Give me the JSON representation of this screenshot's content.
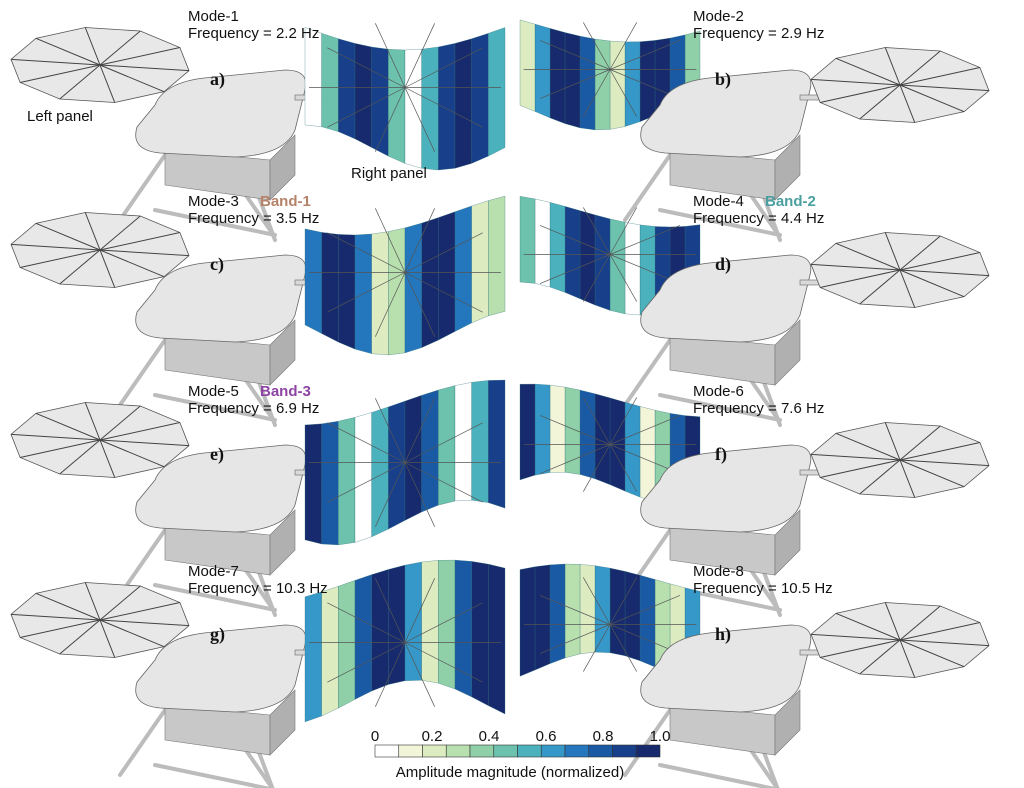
{
  "modes": [
    {
      "panel": "a)",
      "mode": "Mode-1",
      "frequency": "Frequency = 2.2 Hz",
      "band": "",
      "band_color": "",
      "deformed_side": "right"
    },
    {
      "panel": "b)",
      "mode": "Mode-2",
      "frequency": "Frequency = 2.9 Hz",
      "band": "",
      "band_color": "",
      "deformed_side": "left"
    },
    {
      "panel": "c)",
      "mode": "Mode-3",
      "frequency": "Frequency = 3.5 Hz",
      "band": "Band-1",
      "band_color": "#b5826a",
      "deformed_side": "right"
    },
    {
      "panel": "d)",
      "mode": "Mode-4",
      "frequency": "Frequency = 4.4 Hz",
      "band": "Band-2",
      "band_color": "#4a9fa0",
      "deformed_side": "left"
    },
    {
      "panel": "e)",
      "mode": "Mode-5",
      "frequency": "Frequency = 6.9 Hz",
      "band": "Band-3",
      "band_color": "#8e44a3",
      "deformed_side": "right"
    },
    {
      "panel": "f)",
      "mode": "Mode-6",
      "frequency": "Frequency = 7.6 Hz",
      "band": "",
      "band_color": "",
      "deformed_side": "left"
    },
    {
      "panel": "g)",
      "mode": "Mode-7",
      "frequency": "Frequency = 10.3 Hz",
      "band": "",
      "band_color": "",
      "deformed_side": "right"
    },
    {
      "panel": "h)",
      "mode": "Mode-8",
      "frequency": "Frequency = 10.5 Hz",
      "band": "",
      "band_color": "",
      "deformed_side": "left"
    }
  ],
  "annotations": {
    "left_panel": "Left panel",
    "right_panel": "Right panel"
  },
  "colorbar": {
    "label": "Amplitude magnitude (normalized)",
    "ticks": [
      "0",
      "0.2",
      "0.4",
      "0.6",
      "0.8",
      "1.0"
    ],
    "colors": [
      "#ffffff",
      "#f3f5d8",
      "#dcecc0",
      "#b8dfae",
      "#8fd0a8",
      "#6cc2ad",
      "#4bb2bd",
      "#3598c9",
      "#2477bd",
      "#1a5aa5",
      "#183f8a",
      "#162a6d"
    ]
  },
  "colors": {
    "undeformed_panel": "#e8e8e8",
    "spacecraft_body": "#e6e6e6"
  }
}
